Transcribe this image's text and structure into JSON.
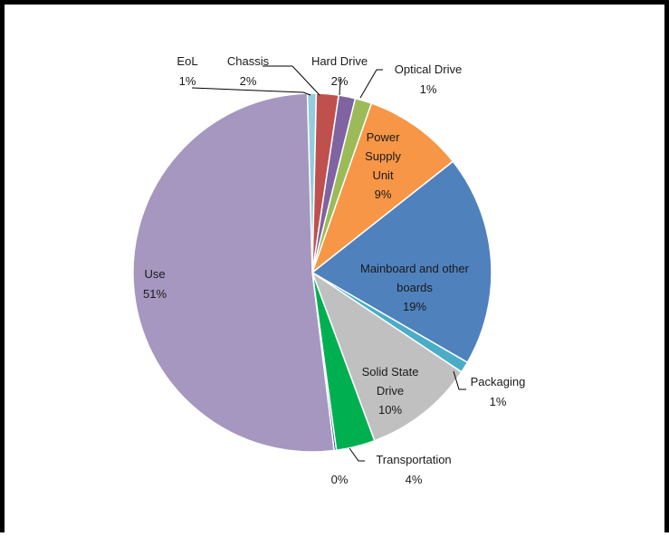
{
  "chart_data": {
    "type": "pie",
    "title": "",
    "start_angle_deg": -1.6,
    "direction": "clockwise",
    "slices": [
      {
        "name": "EoL",
        "label": "1%",
        "value": 0.8,
        "color": "#93CDDD"
      },
      {
        "name": "Chassis",
        "label": "2%",
        "value": 2.0,
        "color": "#C0504D"
      },
      {
        "name": "Hard Drive",
        "label": "2%",
        "value": 1.5,
        "color": "#8064A2"
      },
      {
        "name": "Optical Drive",
        "label": "1%",
        "value": 1.5,
        "color": "#9BBB59"
      },
      {
        "name": "Power Supply Unit",
        "label": "9%",
        "value": 9.0,
        "color": "#F79646"
      },
      {
        "name": "Mainboard and other boards",
        "label": "19%",
        "value": 19.0,
        "color": "#4F81BD"
      },
      {
        "name": "Packaging",
        "label": "1%",
        "value": 1.0,
        "color": "#4BACC6"
      },
      {
        "name": "Solid State Drive",
        "label": "10%",
        "value": 10.0,
        "color": "#C0C0C0"
      },
      {
        "name": "Transportation",
        "label": "4%",
        "value": 3.5,
        "color": "#00B050"
      },
      {
        "name": "",
        "label": "0%",
        "value": 0.2,
        "color": "#1F497D"
      },
      {
        "name": "Use",
        "label": "51%",
        "value": 51.5,
        "color": "#A597BF"
      }
    ],
    "labels": {
      "eol": {
        "name": "EoL",
        "pct": "1%"
      },
      "chassis": {
        "name": "Chassis",
        "pct": "2%"
      },
      "hard_drive": {
        "name": "Hard Drive",
        "pct": "2%"
      },
      "optical_drive": {
        "name": "Optical Drive",
        "pct": "1%"
      },
      "psu": {
        "line1": "Power",
        "line2": "Supply",
        "line3": "Unit",
        "pct": "9%"
      },
      "mainboard": {
        "line1": "Mainboard and other",
        "line2": "boards",
        "pct": "19%"
      },
      "packaging": {
        "name": "Packaging",
        "pct": "1%"
      },
      "ssd": {
        "line1": "Solid State",
        "line2": "Drive",
        "pct": "10%"
      },
      "transportation": {
        "name": "Transportation",
        "pct": "4%"
      },
      "zero": {
        "pct": "0%"
      },
      "use": {
        "name": "Use",
        "pct": "51%"
      }
    }
  }
}
